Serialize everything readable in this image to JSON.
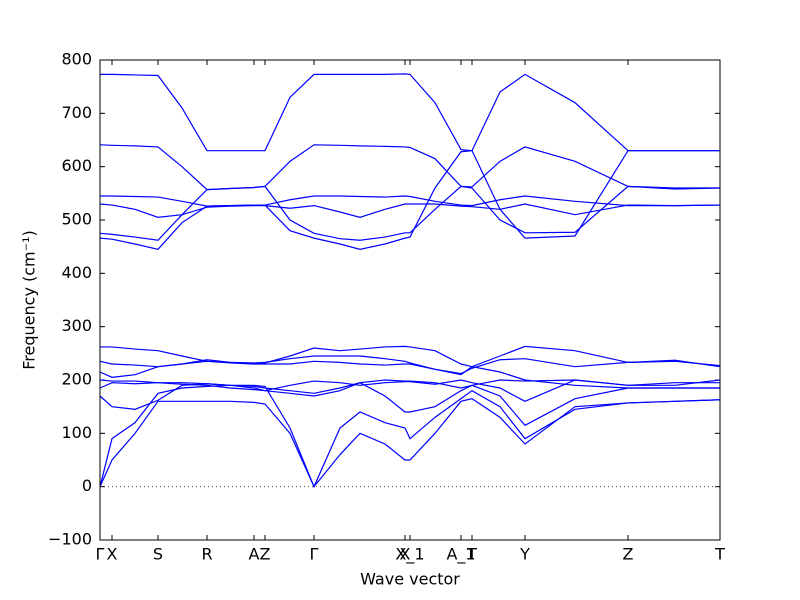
{
  "chart_data": {
    "type": "line",
    "ylabel": "Frequency (cm⁻¹)",
    "xlabel": "Wave vector",
    "x": [
      0,
      12,
      35,
      58,
      82,
      107,
      130,
      154,
      165,
      190,
      214,
      240,
      260,
      285,
      305,
      310,
      335,
      361,
      372,
      400,
      425,
      475,
      528,
      575,
      620
    ],
    "xlim": [
      0,
      620
    ],
    "xticks": [
      {
        "value": 0,
        "label": "Γ"
      },
      {
        "value": 12,
        "label": "X"
      },
      {
        "value": 58,
        "label": "S"
      },
      {
        "value": 107,
        "label": "R"
      },
      {
        "value": 154,
        "label": "A"
      },
      {
        "value": 165,
        "label": "Z"
      },
      {
        "value": 214,
        "label": "Γ"
      },
      {
        "value": 305,
        "label": "X"
      },
      {
        "value": 310,
        "label": "X_1"
      },
      {
        "value": 361,
        "label": "A_1"
      },
      {
        "value": 372,
        "label": "T"
      },
      {
        "value": 425,
        "label": "Y"
      },
      {
        "value": 528,
        "label": "Z"
      },
      {
        "value": 620,
        "label": "T"
      }
    ],
    "ylim": [
      -100,
      800
    ],
    "yticks": [
      {
        "value": -100,
        "label": "−100"
      },
      0,
      100,
      200,
      300,
      400,
      500,
      600,
      700,
      800
    ],
    "hline": 0,
    "color": "#0000ff",
    "series": [
      {
        "values": [
          773,
          773,
          772,
          771,
          710,
          630,
          630,
          630,
          630,
          730,
          773,
          773,
          773,
          773,
          774,
          773,
          720,
          632,
          630,
          740,
          773,
          720,
          630,
          630,
          630
        ]
      },
      {
        "values": [
          641,
          640,
          639,
          637,
          600,
          557,
          559,
          561,
          563,
          610,
          641,
          640,
          639,
          638,
          637,
          636,
          615,
          563,
          562,
          610,
          637,
          610,
          563,
          558,
          560
        ]
      },
      {
        "values": [
          545,
          545,
          544,
          543,
          535,
          526,
          527,
          528,
          528,
          538,
          545,
          545,
          544,
          543,
          545,
          544,
          535,
          528,
          527,
          538,
          545,
          535,
          527,
          527,
          528
        ]
      },
      {
        "values": [
          530,
          528,
          520,
          505,
          510,
          524,
          526,
          527,
          527,
          522,
          527,
          515,
          505,
          520,
          530,
          530,
          530,
          526,
          525,
          520,
          530,
          510,
          528,
          527,
          528
        ]
      },
      {
        "values": [
          475,
          473,
          468,
          462,
          510,
          557,
          559,
          561,
          563,
          500,
          475,
          465,
          462,
          468,
          476,
          476,
          520,
          563,
          560,
          500,
          476,
          477,
          563,
          560,
          560
        ]
      },
      {
        "values": [
          466,
          464,
          455,
          445,
          495,
          526,
          527,
          528,
          528,
          480,
          466,
          455,
          445,
          455,
          466,
          468,
          560,
          628,
          630,
          520,
          466,
          470,
          630,
          630,
          630
        ]
      },
      {
        "values": [
          0,
          50,
          100,
          160,
          160,
          160,
          160,
          158,
          155,
          100,
          0,
          60,
          100,
          80,
          50,
          50,
          100,
          160,
          165,
          130,
          80,
          150,
          157,
          160,
          163
        ]
      },
      {
        "values": [
          0,
          90,
          120,
          175,
          185,
          188,
          190,
          190,
          188,
          110,
          0,
          110,
          140,
          120,
          110,
          90,
          130,
          165,
          180,
          150,
          90,
          145,
          157,
          160,
          163
        ]
      },
      {
        "values": [
          170,
          150,
          145,
          162,
          190,
          193,
          190,
          185,
          180,
          175,
          170,
          180,
          195,
          170,
          140,
          140,
          150,
          180,
          190,
          170,
          115,
          165,
          185,
          185,
          185
        ]
      },
      {
        "values": [
          185,
          195,
          193,
          195,
          195,
          193,
          190,
          188,
          185,
          180,
          175,
          185,
          195,
          200,
          198,
          198,
          195,
          185,
          190,
          200,
          198,
          200,
          190,
          190,
          200
        ]
      },
      {
        "values": [
          200,
          198,
          198,
          195,
          192,
          190,
          185,
          182,
          180,
          190,
          198,
          195,
          190,
          195,
          197,
          197,
          192,
          200,
          195,
          185,
          160,
          200,
          190,
          195,
          195
        ]
      },
      {
        "values": [
          215,
          205,
          210,
          225,
          230,
          235,
          232,
          230,
          230,
          230,
          235,
          233,
          230,
          228,
          230,
          230,
          220,
          210,
          225,
          215,
          200,
          190,
          185,
          185,
          185
        ]
      },
      {
        "values": [
          235,
          230,
          228,
          225,
          230,
          238,
          233,
          230,
          232,
          245,
          260,
          255,
          258,
          262,
          263,
          262,
          255,
          230,
          225,
          245,
          263,
          255,
          233,
          237,
          225
        ]
      },
      {
        "values": [
          262,
          262,
          258,
          255,
          245,
          235,
          233,
          232,
          233,
          240,
          245,
          245,
          245,
          240,
          235,
          232,
          220,
          212,
          222,
          238,
          240,
          225,
          233,
          235,
          227
        ]
      }
    ]
  }
}
